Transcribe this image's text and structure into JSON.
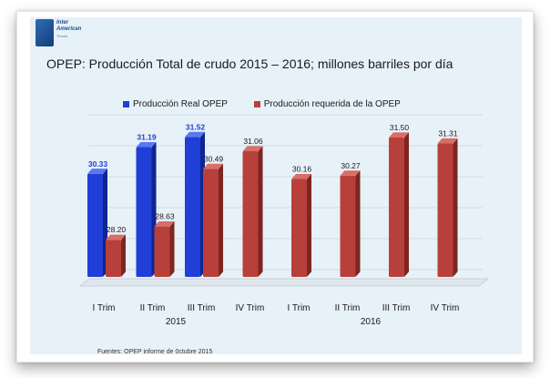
{
  "logo": {
    "line1": "Inter",
    "line2": "American",
    "line3": "Trends"
  },
  "chart_data": {
    "type": "bar",
    "title": "OPEP: Producción Total de crudo 2015 – 2016; millones barriles por día",
    "categories": [
      "I Trim",
      "II Trim",
      "III Trim",
      "IV Trim",
      "I Trim",
      "II Trim",
      "III Trim",
      "IV Trim"
    ],
    "groups": [
      {
        "label": "2015",
        "categories": [
          "I Trim",
          "II Trim",
          "III Trim",
          "IV Trim"
        ]
      },
      {
        "label": "2016",
        "categories": [
          "I Trim",
          "II Trim",
          "III Trim",
          "IV Trim"
        ]
      }
    ],
    "series": [
      {
        "name": "Producción Real OPEP",
        "color": "#1f3fd6",
        "values": [
          30.33,
          31.19,
          31.52,
          null,
          null,
          null,
          null,
          null
        ]
      },
      {
        "name": "Producción requerida de la OPEP",
        "color": "#b8403a",
        "values": [
          28.2,
          28.63,
          30.49,
          31.06,
          30.16,
          30.27,
          31.5,
          31.31
        ]
      }
    ],
    "data_labels": {
      "real": [
        "30.33",
        "31.19",
        "31.52"
      ],
      "required": [
        "28.20",
        "28.63",
        "30.49",
        "31.06",
        "30.16",
        "30.27",
        "31.50",
        "31.31"
      ]
    },
    "ylim": [
      27,
      32
    ],
    "grid": true,
    "legend_position": "top",
    "source": "Fuentes: OPEP informe de 0ctubre 2015"
  }
}
